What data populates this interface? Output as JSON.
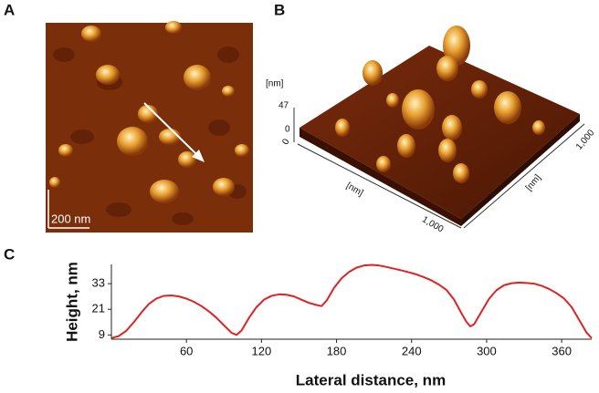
{
  "panels": {
    "a": {
      "label": "A",
      "scale_bar": "200 nm"
    },
    "b": {
      "label": "B",
      "z_unit": "[nm]",
      "z_max": "47",
      "z_min": "0",
      "origin": "0",
      "x_unit": "[nm]",
      "x_max": "1,000",
      "y_unit": "[nm]",
      "y_max": "1,000"
    },
    "c": {
      "label": "C"
    }
  },
  "chart_data": {
    "type": "line",
    "xlabel": "Lateral distance, nm",
    "ylabel": "Height, nm",
    "color": "#e02222",
    "x": [
      0,
      6,
      12,
      18,
      24,
      30,
      36,
      42,
      48,
      54,
      60,
      66,
      72,
      78,
      84,
      90,
      96,
      100,
      104,
      110,
      116,
      122,
      128,
      134,
      140,
      146,
      152,
      158,
      164,
      168,
      172,
      178,
      184,
      190,
      196,
      202,
      208,
      214,
      220,
      226,
      232,
      238,
      244,
      250,
      256,
      262,
      268,
      274,
      280,
      284,
      287,
      290,
      296,
      302,
      308,
      314,
      320,
      326,
      332,
      338,
      344,
      350,
      356,
      362,
      368,
      374,
      380,
      384
    ],
    "values": [
      7.5,
      8.5,
      11,
      15,
      19.5,
      23.5,
      26,
      27.3,
      27.5,
      27,
      26,
      24.5,
      22.5,
      20,
      17,
      13.5,
      10,
      9,
      11,
      17,
      22,
      25.5,
      27.3,
      28,
      27.8,
      27,
      25.5,
      24,
      23,
      22.5,
      25,
      31,
      35.5,
      38.5,
      40.5,
      41.5,
      41.8,
      41.5,
      40.8,
      40,
      39.2,
      38.3,
      37.3,
      36,
      34.5,
      32.5,
      30,
      25.5,
      19,
      15,
      13,
      14,
      20,
      26,
      30,
      32.3,
      33.2,
      33.5,
      33.3,
      33,
      32,
      30.5,
      28.5,
      26,
      22,
      16,
      10,
      7.5
    ],
    "xlim": [
      0,
      384
    ],
    "xticks": [
      60,
      120,
      180,
      240,
      300,
      360
    ],
    "ylim": [
      7,
      42
    ],
    "yticks": [
      9,
      21,
      33
    ]
  }
}
